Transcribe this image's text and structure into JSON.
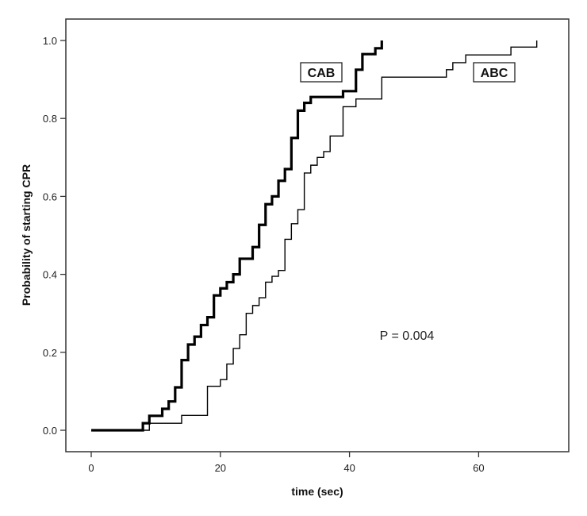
{
  "chart_data": {
    "type": "line",
    "subtype": "step (Kaplan-Meier style cumulative)",
    "title": "",
    "xlabel": "time (sec)",
    "ylabel": "Probability of starting CPR",
    "xlim": [
      -4,
      74
    ],
    "ylim": [
      -0.05,
      1.05
    ],
    "x_ticks": [
      0,
      20,
      40,
      60
    ],
    "y_ticks": [
      0.0,
      0.2,
      0.4,
      0.6,
      0.8,
      1.0
    ],
    "x_tick_labels": [
      "0",
      "20",
      "40",
      "60"
    ],
    "y_tick_labels": [
      "0.0",
      "0.2",
      "0.4",
      "0.6",
      "0.8",
      "1.0"
    ],
    "grid": false,
    "legend_position": "inline labels near curves",
    "annotations": [
      {
        "text": "P = 0.004",
        "x": 50,
        "y": 0.24
      }
    ],
    "series": [
      {
        "name": "CAB",
        "line_width": "thick",
        "color": "#000000",
        "steps": [
          [
            0,
            0.0
          ],
          [
            8,
            0.018
          ],
          [
            9,
            0.037
          ],
          [
            11,
            0.055
          ],
          [
            12,
            0.074
          ],
          [
            13,
            0.11
          ],
          [
            14,
            0.18
          ],
          [
            15,
            0.22
          ],
          [
            16,
            0.24
          ],
          [
            17,
            0.27
          ],
          [
            18,
            0.29
          ],
          [
            19,
            0.346
          ],
          [
            20,
            0.364
          ],
          [
            21,
            0.38
          ],
          [
            22,
            0.4
          ],
          [
            23,
            0.44
          ],
          [
            25,
            0.47
          ],
          [
            26,
            0.527
          ],
          [
            27,
            0.58
          ],
          [
            28,
            0.6
          ],
          [
            29,
            0.64
          ],
          [
            30,
            0.67
          ],
          [
            31,
            0.75
          ],
          [
            32,
            0.82
          ],
          [
            33,
            0.84
          ],
          [
            34,
            0.855
          ],
          [
            39,
            0.87
          ],
          [
            41,
            0.925
          ],
          [
            42,
            0.965
          ],
          [
            44,
            0.98
          ],
          [
            45,
            1.0
          ]
        ]
      },
      {
        "name": "ABC",
        "line_width": "thin",
        "color": "#000000",
        "steps": [
          [
            0,
            0.0
          ],
          [
            9,
            0.018
          ],
          [
            14,
            0.038
          ],
          [
            18,
            0.113
          ],
          [
            20,
            0.13
          ],
          [
            21,
            0.17
          ],
          [
            22,
            0.21
          ],
          [
            23,
            0.245
          ],
          [
            24,
            0.3
          ],
          [
            25,
            0.32
          ],
          [
            26,
            0.34
          ],
          [
            27,
            0.38
          ],
          [
            28,
            0.395
          ],
          [
            29,
            0.41
          ],
          [
            30,
            0.49
          ],
          [
            31,
            0.53
          ],
          [
            32,
            0.566
          ],
          [
            33,
            0.66
          ],
          [
            34,
            0.68
          ],
          [
            35,
            0.7
          ],
          [
            36,
            0.715
          ],
          [
            37,
            0.755
          ],
          [
            39,
            0.83
          ],
          [
            41,
            0.85
          ],
          [
            45,
            0.906
          ],
          [
            55,
            0.925
          ],
          [
            56,
            0.943
          ],
          [
            58,
            0.963
          ],
          [
            65,
            0.983
          ],
          [
            69,
            1.0
          ]
        ]
      }
    ]
  },
  "labels": {
    "cab": "CAB",
    "abc": "ABC",
    "p_value": "P = 0.004",
    "xlabel": "time (sec)",
    "ylabel": "Probability of starting CPR"
  }
}
